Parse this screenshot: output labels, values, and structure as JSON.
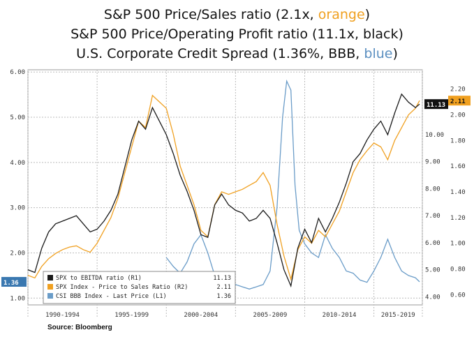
{
  "titles": {
    "line1_prefix": "S&P 500 Price/Sales ratio (2.1x, ",
    "line1_highlight": "orange",
    "line1_suffix": ")",
    "line2": "S&P 500 Price/Operating Profit ratio (11.1x, black)",
    "line3_prefix": "U.S. Corporate Credit Spread (1.36%, BBB, ",
    "line3_highlight": "blue",
    "line3_suffix": ")"
  },
  "source": "Source: Bloomberg",
  "colors": {
    "black": "#1a1a1a",
    "orange": "#f0a020",
    "blue": "#6a9cc8"
  },
  "chart_data": {
    "type": "line",
    "x_range": [
      1990.0,
      2018.5
    ],
    "x_tick_labels": [
      "1990-1994",
      "1995-1999",
      "2000-2004",
      "2005-2009",
      "2010-2014",
      "2015-2019"
    ],
    "x_ticks": [
      1990,
      1995,
      2000,
      2005,
      2010,
      2015,
      2018.5
    ],
    "left_axis": {
      "range": [
        0.85,
        6.05
      ],
      "ticks": [
        "1.00",
        "2.00",
        "3.00",
        "4.00",
        "5.00",
        "6.00"
      ]
    },
    "right_axis_ebitda": {
      "range": [
        3.7,
        12.4
      ],
      "ticks": [
        "4.00",
        "5.00",
        "6.00",
        "7.00",
        "8.00",
        "9.00",
        "10.00"
      ]
    },
    "right_axis_ps": {
      "range": [
        0.52,
        2.35
      ],
      "ticks": [
        "0.60",
        "0.80",
        "1.00",
        "1.20",
        "1.40",
        "1.60",
        "1.80",
        "2.00",
        "2.20"
      ]
    },
    "series": [
      {
        "name": "SPX to EBITDA ratio (R1)",
        "last_value": "11.13",
        "axis": "right_ebitda",
        "points": [
          [
            1990,
            5.0
          ],
          [
            1990.5,
            4.9
          ],
          [
            1991,
            5.8
          ],
          [
            1991.5,
            6.4
          ],
          [
            1992,
            6.7
          ],
          [
            1992.5,
            6.8
          ],
          [
            1993,
            6.9
          ],
          [
            1993.5,
            7.0
          ],
          [
            1994,
            6.7
          ],
          [
            1994.5,
            6.4
          ],
          [
            1995,
            6.5
          ],
          [
            1995.5,
            6.8
          ],
          [
            1996,
            7.2
          ],
          [
            1996.5,
            7.8
          ],
          [
            1997,
            8.8
          ],
          [
            1997.5,
            9.8
          ],
          [
            1998,
            10.5
          ],
          [
            1998.5,
            10.2
          ],
          [
            1999,
            11.0
          ],
          [
            1999.5,
            10.5
          ],
          [
            2000,
            10.0
          ],
          [
            2000.5,
            9.3
          ],
          [
            2001,
            8.5
          ],
          [
            2001.5,
            7.9
          ],
          [
            2002,
            7.2
          ],
          [
            2002.5,
            6.3
          ],
          [
            2003,
            6.2
          ],
          [
            2003.5,
            7.4
          ],
          [
            2004,
            7.8
          ],
          [
            2004.5,
            7.4
          ],
          [
            2005,
            7.2
          ],
          [
            2005.5,
            7.1
          ],
          [
            2006,
            6.8
          ],
          [
            2006.5,
            6.9
          ],
          [
            2007,
            7.2
          ],
          [
            2007.5,
            6.9
          ],
          [
            2008,
            6.0
          ],
          [
            2008.5,
            5.0
          ],
          [
            2009,
            4.4
          ],
          [
            2009.5,
            5.8
          ],
          [
            2010,
            6.5
          ],
          [
            2010.5,
            6.0
          ],
          [
            2011,
            6.9
          ],
          [
            2011.5,
            6.4
          ],
          [
            2012,
            6.9
          ],
          [
            2012.5,
            7.5
          ],
          [
            2013,
            8.2
          ],
          [
            2013.5,
            9.0
          ],
          [
            2014,
            9.3
          ],
          [
            2014.5,
            9.8
          ],
          [
            2015,
            10.2
          ],
          [
            2015.5,
            10.5
          ],
          [
            2016,
            10.0
          ],
          [
            2016.5,
            10.8
          ],
          [
            2017,
            11.5
          ],
          [
            2017.5,
            11.2
          ],
          [
            2018,
            11.0
          ],
          [
            2018.3,
            11.13
          ]
        ]
      },
      {
        "name": "SPX Index - Price to Sales Ratio (R2)",
        "last_value": "2.11",
        "axis": "right_ps",
        "points": [
          [
            1990,
            0.75
          ],
          [
            1990.5,
            0.73
          ],
          [
            1991,
            0.82
          ],
          [
            1991.5,
            0.88
          ],
          [
            1992,
            0.92
          ],
          [
            1992.5,
            0.95
          ],
          [
            1993,
            0.97
          ],
          [
            1993.5,
            0.98
          ],
          [
            1994,
            0.95
          ],
          [
            1994.5,
            0.93
          ],
          [
            1995,
            1.0
          ],
          [
            1995.5,
            1.1
          ],
          [
            1996,
            1.2
          ],
          [
            1996.5,
            1.35
          ],
          [
            1997,
            1.55
          ],
          [
            1997.5,
            1.75
          ],
          [
            1998,
            1.95
          ],
          [
            1998.5,
            1.9
          ],
          [
            1999,
            2.15
          ],
          [
            1999.5,
            2.1
          ],
          [
            2000,
            2.05
          ],
          [
            2000.5,
            1.85
          ],
          [
            2001,
            1.6
          ],
          [
            2001.5,
            1.45
          ],
          [
            2002,
            1.3
          ],
          [
            2002.5,
            1.1
          ],
          [
            2003,
            1.05
          ],
          [
            2003.5,
            1.3
          ],
          [
            2004,
            1.4
          ],
          [
            2004.5,
            1.38
          ],
          [
            2005,
            1.4
          ],
          [
            2005.5,
            1.42
          ],
          [
            2006,
            1.45
          ],
          [
            2006.5,
            1.48
          ],
          [
            2007,
            1.55
          ],
          [
            2007.5,
            1.45
          ],
          [
            2008,
            1.15
          ],
          [
            2008.5,
            0.9
          ],
          [
            2009,
            0.72
          ],
          [
            2009.5,
            0.95
          ],
          [
            2010,
            1.05
          ],
          [
            2010.5,
            1.0
          ],
          [
            2011,
            1.1
          ],
          [
            2011.5,
            1.05
          ],
          [
            2012,
            1.15
          ],
          [
            2012.5,
            1.25
          ],
          [
            2013,
            1.4
          ],
          [
            2013.5,
            1.55
          ],
          [
            2014,
            1.65
          ],
          [
            2014.5,
            1.72
          ],
          [
            2015,
            1.78
          ],
          [
            2015.5,
            1.75
          ],
          [
            2016,
            1.65
          ],
          [
            2016.5,
            1.8
          ],
          [
            2017,
            1.9
          ],
          [
            2017.5,
            2.0
          ],
          [
            2018,
            2.05
          ],
          [
            2018.3,
            2.11
          ]
        ]
      },
      {
        "name": "CSI BBB Index - Last Price (L1)",
        "last_value": "1.36",
        "axis": "left",
        "points": [
          [
            2000,
            1.9
          ],
          [
            2000.5,
            1.7
          ],
          [
            2001,
            1.55
          ],
          [
            2001.5,
            1.8
          ],
          [
            2002,
            2.2
          ],
          [
            2002.5,
            2.4
          ],
          [
            2003,
            2.0
          ],
          [
            2003.5,
            1.5
          ],
          [
            2004,
            1.35
          ],
          [
            2004.5,
            1.2
          ],
          [
            2005,
            1.3
          ],
          [
            2005.5,
            1.25
          ],
          [
            2006,
            1.2
          ],
          [
            2006.5,
            1.25
          ],
          [
            2007,
            1.3
          ],
          [
            2007.5,
            1.6
          ],
          [
            2008,
            3.0
          ],
          [
            2008.4,
            5.0
          ],
          [
            2008.7,
            5.8
          ],
          [
            2009,
            5.6
          ],
          [
            2009.3,
            3.5
          ],
          [
            2009.6,
            2.5
          ],
          [
            2010,
            2.2
          ],
          [
            2010.5,
            2.0
          ],
          [
            2011,
            1.9
          ],
          [
            2011.5,
            2.4
          ],
          [
            2012,
            2.1
          ],
          [
            2012.5,
            1.9
          ],
          [
            2013,
            1.6
          ],
          [
            2013.5,
            1.55
          ],
          [
            2014,
            1.4
          ],
          [
            2014.5,
            1.35
          ],
          [
            2015,
            1.6
          ],
          [
            2015.5,
            1.9
          ],
          [
            2016,
            2.3
          ],
          [
            2016.5,
            1.9
          ],
          [
            2017,
            1.6
          ],
          [
            2017.5,
            1.5
          ],
          [
            2018,
            1.45
          ],
          [
            2018.3,
            1.36
          ]
        ]
      }
    ],
    "legend": {
      "placement": "bottom-left",
      "entries": [
        {
          "label": "SPX to EBITDA ratio (R1)",
          "value": "11.13",
          "color": "#1a1a1a"
        },
        {
          "label": "SPX Index - Price to Sales Ratio (R2)",
          "value": "2.11",
          "color": "#f0a020"
        },
        {
          "label": "CSI BBB Index - Last Price (L1)",
          "value": "1.36",
          "color": "#6a9cc8"
        }
      ]
    },
    "last_value_tags": {
      "ebitda": "11.13",
      "ps": "2.11",
      "bbb": "1.36"
    }
  }
}
